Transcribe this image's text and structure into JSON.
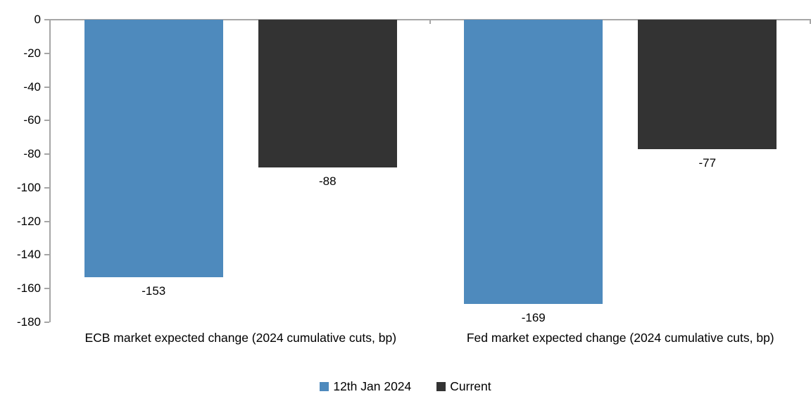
{
  "chart_data": {
    "type": "bar",
    "title": "",
    "categories": [
      "ECB market expected change (2024 cumulative cuts, bp)",
      "Fed market expected change (2024 cumulative cuts, bp)"
    ],
    "series": [
      {
        "name": "12th Jan 2024",
        "color": "#4e8abd",
        "values": [
          -153,
          -169
        ]
      },
      {
        "name": "Current",
        "color": "#333333",
        "values": [
          -88,
          -77
        ]
      }
    ],
    "ylim": [
      -180,
      0
    ],
    "yticks": [
      0,
      -20,
      -40,
      -60,
      -80,
      -100,
      -120,
      -140,
      -160,
      -180
    ],
    "grid": false,
    "legend_position": "bottom",
    "axis_color": "#a6a6a6",
    "label_color": "#000000",
    "data_labels_shown": true
  }
}
